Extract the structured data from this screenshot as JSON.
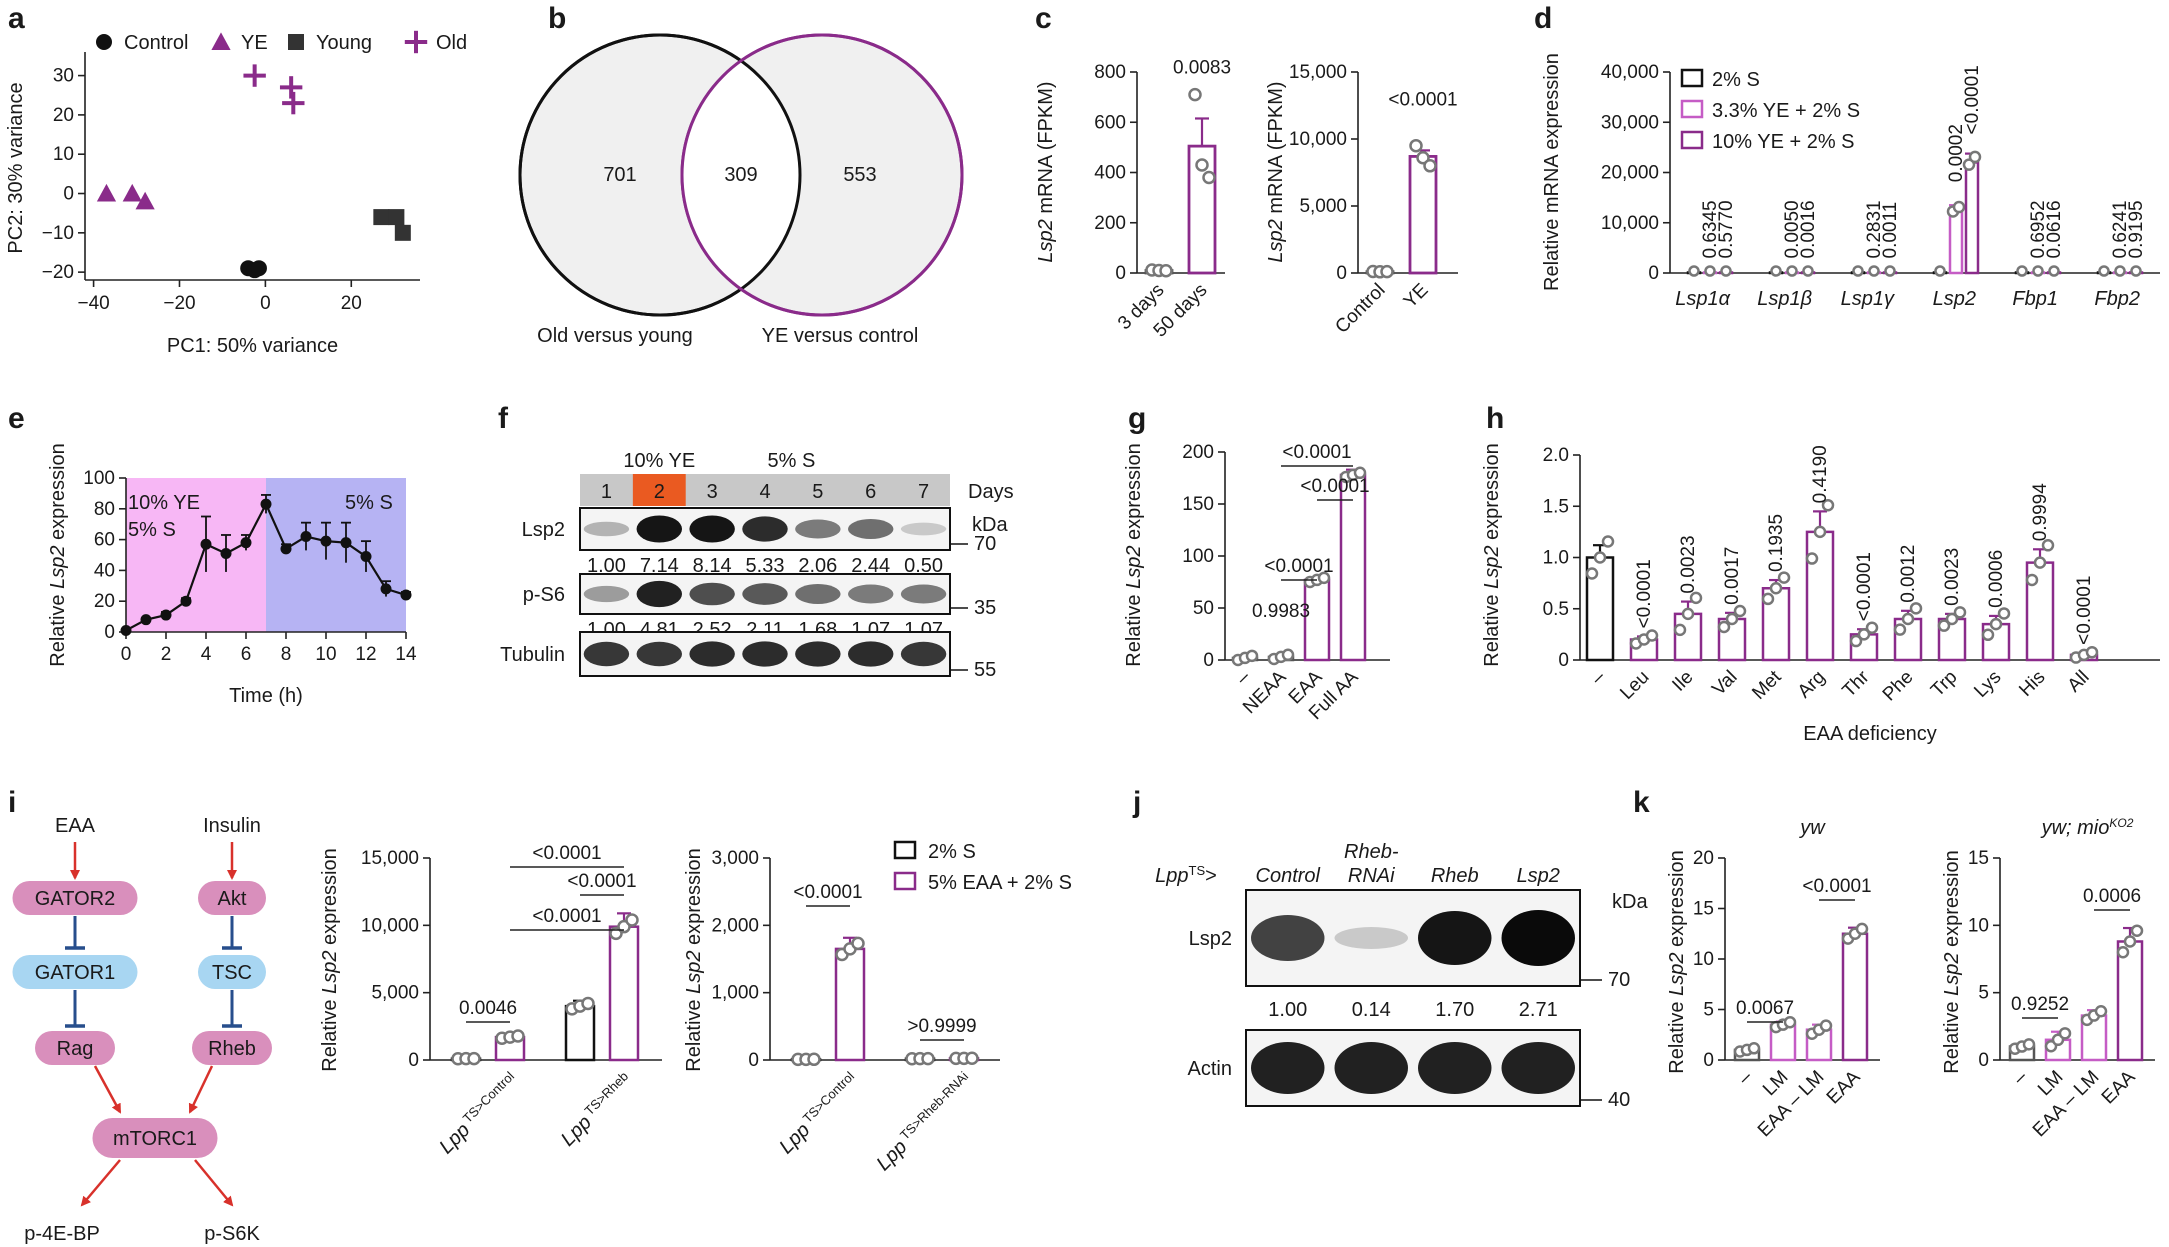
{
  "colors": {
    "purple": "#8a2b8a",
    "light_purple": "#c55cc5",
    "grey": "#555555",
    "black": "#111111",
    "pink_bg": "#f7b7f5",
    "blue_bg": "#b6b3f3",
    "gator": "#d98fbc",
    "gator1": "#a8d6f2",
    "lane_bar": "#c8c8c8",
    "lane_orange": "#ea5a21",
    "arrow_red": "#d8312b",
    "inhib_blue": "#274e8c"
  },
  "panels": {
    "a": "a",
    "b": "b",
    "c": "c",
    "d": "d",
    "e": "e",
    "f": "f",
    "g": "g",
    "h": "h",
    "i": "i",
    "j": "j",
    "k": "k"
  },
  "chart_data": [
    {
      "panel": "a",
      "type": "scatter",
      "xlabel": "PC1: 50% variance",
      "ylabel": "PC2: 30% variance",
      "xlim": [
        -42,
        36
      ],
      "ylim": [
        -22,
        36
      ],
      "xticks": [
        "−40",
        "−20",
        "0",
        "20"
      ],
      "yticks": [
        "−20",
        "−10",
        "0",
        "10",
        "20",
        "30"
      ],
      "legend": [
        "Control",
        "YE",
        "Young",
        "Old"
      ],
      "series": [
        {
          "name": "Control",
          "marker": "circle",
          "points": [
            [
              -4,
              -19
            ],
            [
              -2.5,
              -19.5
            ],
            [
              -1.5,
              -19
            ]
          ]
        },
        {
          "name": "YE",
          "marker": "triangle",
          "points": [
            [
              -37,
              0
            ],
            [
              -31,
              0
            ],
            [
              -28,
              -2
            ]
          ]
        },
        {
          "name": "Young",
          "marker": "square",
          "points": [
            [
              27,
              -6
            ],
            [
              30.5,
              -6
            ],
            [
              32,
              -10
            ]
          ]
        },
        {
          "name": "Old",
          "marker": "plus",
          "points": [
            [
              -2.5,
              30
            ],
            [
              6,
              27
            ],
            [
              6.5,
              23
            ]
          ]
        }
      ]
    },
    {
      "panel": "b",
      "type": "venn",
      "sets": [
        "Old versus young",
        "YE versus control"
      ],
      "values": {
        "left_only": "701",
        "both": "309",
        "right_only": "553"
      }
    },
    {
      "panel": "c",
      "type": "bar",
      "charts": [
        {
          "ylabel_gene": "Lsp2",
          "ylabel_rest": " mRNA (FPKM)",
          "categories": [
            "3 days",
            "50 days"
          ],
          "values": [
            10,
            505
          ],
          "err": [
            4,
            110
          ],
          "points": [
            [
              12,
              10,
              9
            ],
            [
              710,
              430,
              380
            ]
          ],
          "ylim": [
            0,
            800
          ],
          "yticks": [
            "0",
            "200",
            "400",
            "600",
            "800"
          ],
          "stat": "0.0083"
        },
        {
          "ylabel_gene": "Lsp2",
          "ylabel_rest": " mRNA (FPKM)",
          "categories": [
            "Control",
            "YE"
          ],
          "values": [
            100,
            8700
          ],
          "err": [
            30,
            450
          ],
          "points": [
            [
              110,
              90,
              100
            ],
            [
              9500,
              8600,
              8000
            ]
          ],
          "ylim": [
            0,
            15000
          ],
          "yticks": [
            "0",
            "5,000",
            "10,000",
            "15,000"
          ],
          "stat": "<0.0001"
        }
      ]
    },
    {
      "panel": "d",
      "type": "bar",
      "ylabel": "Relative mRNA expression",
      "ylim": [
        0,
        40000
      ],
      "yticks": [
        "0",
        "10,000",
        "20,000",
        "30,000",
        "40,000"
      ],
      "legend": [
        "2% S",
        "3.3% YE + 2% S",
        "10% YE + 2% S"
      ],
      "categories": [
        "Lsp1α",
        "Lsp1β",
        "Lsp1γ",
        "Lsp2",
        "Fbp1",
        "Fbp2"
      ],
      "series": [
        {
          "name": "2% S",
          "values": [
            100,
            100,
            100,
            100,
            100,
            100
          ]
        },
        {
          "name": "3.3% YE + 2% S",
          "values": [
            100,
            100,
            100,
            12500,
            100,
            100
          ]
        },
        {
          "name": "10% YE + 2% S",
          "values": [
            100,
            100,
            100,
            22000,
            100,
            100
          ]
        }
      ],
      "stats": [
        [
          "0.6345",
          "0.5770"
        ],
        [
          "0.0050",
          "0.0016"
        ],
        [
          "0.2831",
          "0.0011"
        ],
        [
          "0.0002",
          "<0.0001"
        ],
        [
          "0.6952",
          "0.0616"
        ],
        [
          "0.6241",
          "0.9195"
        ]
      ]
    },
    {
      "panel": "e",
      "type": "line",
      "xlabel": "Time (h)",
      "ylabel_pre": "Relative ",
      "ylabel_gene": "Lsp2",
      "ylabel_post": " expression",
      "xlim": [
        0,
        14
      ],
      "ylim": [
        0,
        100
      ],
      "xticks": [
        "0",
        "2",
        "4",
        "6",
        "8",
        "10",
        "12",
        "14"
      ],
      "yticks": [
        "0",
        "20",
        "40",
        "60",
        "80",
        "100"
      ],
      "regions": [
        {
          "label1": "10% YE",
          "label2": "5% S",
          "from": 0,
          "to": 7
        },
        {
          "label1": "5% S",
          "from": 7,
          "to": 14
        }
      ],
      "x": [
        0,
        1,
        2,
        3,
        4,
        5,
        6,
        7,
        8,
        9,
        10,
        11,
        12,
        13,
        14
      ],
      "y": [
        1,
        8,
        11,
        20,
        57,
        51,
        58,
        83,
        54,
        62,
        59,
        58,
        49,
        28,
        24
      ],
      "err": [
        1,
        1,
        2,
        2,
        18,
        12,
        5,
        6,
        3,
        9,
        12,
        13,
        10,
        5,
        2
      ]
    },
    {
      "panel": "g",
      "type": "bar",
      "ylabel_pre": "Relative ",
      "ylabel_gene": "Lsp2",
      "ylabel_post": " expression",
      "categories": [
        "–",
        "NEAA",
        "EAA",
        "Full AA"
      ],
      "values": [
        2,
        3,
        77,
        178
      ],
      "err": [
        0.5,
        1,
        2,
        5
      ],
      "ylim": [
        0,
        200
      ],
      "yticks": [
        "0",
        "50",
        "100",
        "150",
        "200"
      ],
      "stats": [
        "0.9983",
        "<0.0001",
        "<0.0001",
        "<0.0001"
      ]
    },
    {
      "panel": "h",
      "type": "bar",
      "xlabel": "EAA deficiency",
      "ylabel_pre": "Relative ",
      "ylabel_gene": "Lsp2",
      "ylabel_post": " expression",
      "categories": [
        "–",
        "Leu",
        "Ile",
        "Val",
        "Met",
        "Arg",
        "Thr",
        "Phe",
        "Trp",
        "Lys",
        "His",
        "All"
      ],
      "values": [
        1.0,
        0.2,
        0.45,
        0.4,
        0.7,
        1.25,
        0.25,
        0.4,
        0.4,
        0.35,
        0.95,
        0.05
      ],
      "err": [
        0.12,
        0.03,
        0.12,
        0.06,
        0.08,
        0.2,
        0.05,
        0.08,
        0.05,
        0.08,
        0.13,
        0.02
      ],
      "ylim": [
        0,
        2.0
      ],
      "yticks": [
        "0",
        "0.5",
        "1.0",
        "1.5",
        "2.0"
      ],
      "stats": [
        "<0.0001",
        "0.0023",
        "0.0017",
        "0.1935",
        "0.4190",
        "<0.0001",
        "0.0012",
        "0.0023",
        "0.0006",
        "0.9994",
        "<0.0001"
      ]
    },
    {
      "panel": "i",
      "type": "bar",
      "legend": [
        "2% S",
        "5% EAA + 2% S"
      ],
      "charts": [
        {
          "ylabel_pre": "Relative ",
          "ylabel_gene": "Lsp2",
          "ylabel_post": " expression",
          "groups": [
            "Lpp TS>Control",
            "Lpp TS>Rheb"
          ],
          "series": [
            {
              "name": "2% S",
              "values": [
                100,
                4000
              ]
            },
            {
              "name": "5% EAA + 2% S",
              "values": [
                1700,
                9900
              ]
            }
          ],
          "ylim": [
            0,
            15000
          ],
          "yticks": [
            "0",
            "5,000",
            "10,000",
            "15,000"
          ],
          "stats": [
            "0.0046",
            "<0.0001",
            "<0.0001",
            "<0.0001"
          ]
        },
        {
          "ylabel_pre": "Relative ",
          "ylabel_gene": "Lsp2",
          "ylabel_post": " expression",
          "groups": [
            "Lpp TS>Control",
            "Lpp TS>Rheb-RNAi"
          ],
          "series": [
            {
              "name": "2% S",
              "values": [
                10,
                20
              ]
            },
            {
              "name": "5% EAA + 2% S",
              "values": [
                1650,
                25
              ]
            }
          ],
          "ylim": [
            0,
            3000
          ],
          "yticks": [
            "0",
            "1,000",
            "2,000",
            "3,000"
          ],
          "stats": [
            "<0.0001",
            ">0.9999"
          ]
        }
      ]
    },
    {
      "panel": "k",
      "type": "bar",
      "charts": [
        {
          "title": "yw",
          "ylabel_pre": "Relative ",
          "ylabel_gene": "Lsp2",
          "ylabel_post": " expression",
          "categories": [
            "–",
            "LM",
            "EAA – LM",
            "EAA"
          ],
          "values": [
            1,
            3.5,
            3,
            12.5
          ],
          "err": [
            0.2,
            0.3,
            0.5,
            0.6
          ],
          "ylim": [
            0,
            20
          ],
          "yticks": [
            "0",
            "5",
            "10",
            "15",
            "20"
          ],
          "stats": [
            "0.0067",
            "<0.0001"
          ]
        },
        {
          "title": "yw; mio",
          "title_sup": "KO2",
          "ylabel_pre": "Relative ",
          "ylabel_gene": "Lsp2",
          "ylabel_post": " expression",
          "categories": [
            "–",
            "LM",
            "EAA – LM",
            "EAA"
          ],
          "values": [
            1,
            1.5,
            3.3,
            8.8
          ],
          "err": [
            0.2,
            0.6,
            0.4,
            1.0
          ],
          "ylim": [
            0,
            15
          ],
          "yticks": [
            "0",
            "5",
            "10",
            "15"
          ],
          "stats": [
            "0.9252",
            "0.0006"
          ]
        }
      ]
    }
  ],
  "blot_f": {
    "lanes": [
      "1",
      "2",
      "3",
      "4",
      "5",
      "6",
      "7"
    ],
    "group1": "10% YE",
    "group2": "5% S",
    "days": "Days",
    "kda": "kDa",
    "rows": [
      {
        "label": "Lsp2",
        "quant": [
          "1.00",
          "7.14",
          "8.14",
          "5.33",
          "2.06",
          "2.44",
          "0.50"
        ],
        "marker": "70",
        "intensity": [
          0.25,
          0.95,
          0.95,
          0.85,
          0.5,
          0.55,
          0.15
        ]
      },
      {
        "label": "p-S6",
        "quant": [
          "1.00",
          "4.81",
          "2.52",
          "2.11",
          "1.68",
          "1.07",
          "1.07"
        ],
        "marker": "35",
        "intensity": [
          0.35,
          0.9,
          0.7,
          0.65,
          0.55,
          0.5,
          0.5
        ]
      },
      {
        "label": "Tubulin",
        "quant": [],
        "marker": "55",
        "intensity": [
          0.8,
          0.8,
          0.85,
          0.85,
          0.85,
          0.85,
          0.8
        ]
      }
    ]
  },
  "blot_j": {
    "prefix": "Lpp",
    "prefix_sup": "TS",
    "prefix_end": ">",
    "lanes": [
      "Control",
      "Rheb-",
      "Rheb",
      "Lsp2"
    ],
    "lane2_line2": "RNAi",
    "kda": "kDa",
    "rows": [
      {
        "label": "Lsp2",
        "quant": [
          "1.00",
          "0.14",
          "1.70",
          "2.71"
        ],
        "marker": "70",
        "intensity": [
          0.75,
          0.15,
          0.95,
          1.0
        ]
      },
      {
        "label": "Actin",
        "quant": [],
        "marker": "40",
        "intensity": [
          0.9,
          0.9,
          0.9,
          0.9
        ]
      }
    ]
  },
  "pathway_i": {
    "inputs": [
      "EAA",
      "Insulin"
    ],
    "left": [
      "GATOR2",
      "GATOR1",
      "Rag"
    ],
    "right": [
      "Akt",
      "TSC",
      "Rheb"
    ],
    "hub": "mTORC1",
    "outputs": [
      "p-4E-BP",
      "p-S6K"
    ]
  }
}
